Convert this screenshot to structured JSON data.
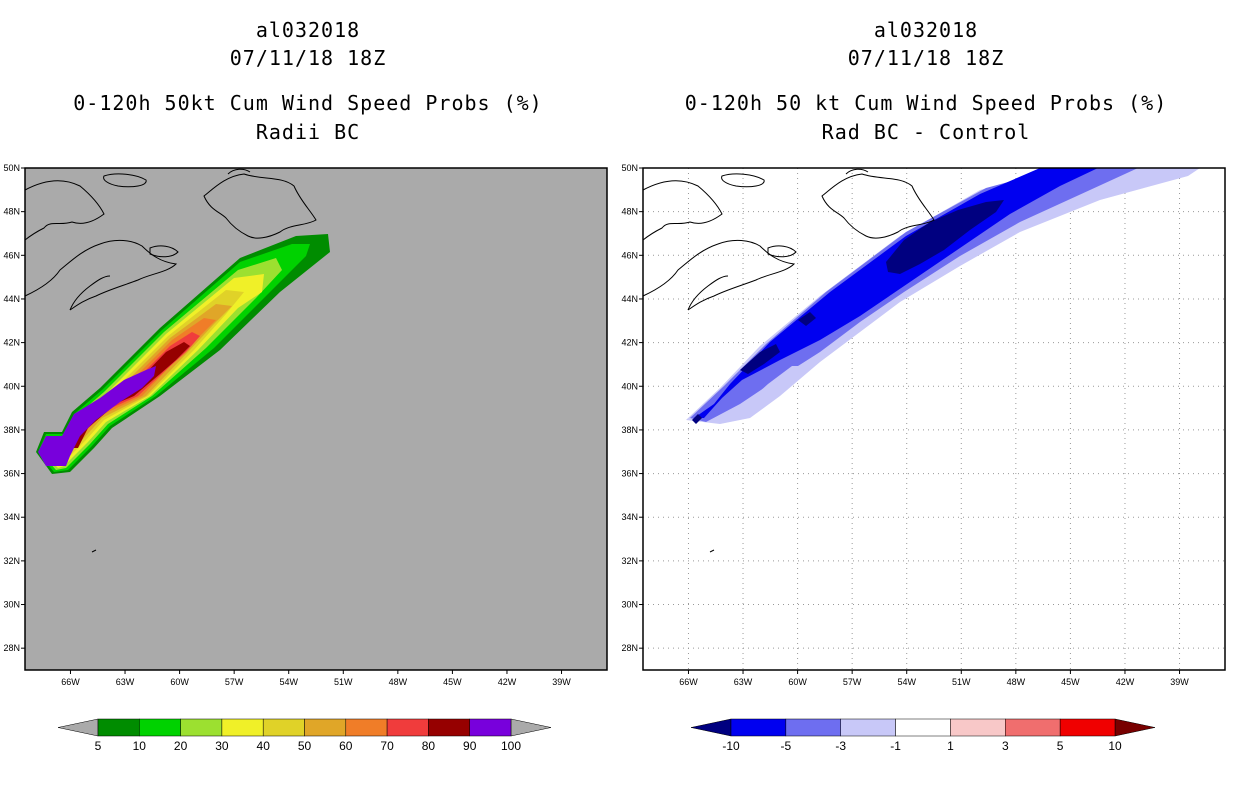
{
  "left_panel": {
    "storm_id": "al032018",
    "date": "07/11/18 18Z",
    "title1": "0-120h 50kt Cum Wind Speed Probs (%)",
    "title2": "Radii BC"
  },
  "right_panel": {
    "storm_id": "al032018",
    "date": "07/11/18 18Z",
    "title1": "0-120h 50 kt Cum Wind Speed Probs (%)",
    "title2": "Rad BC - Control"
  },
  "colors": {
    "land_bg": "#aaaaaa",
    "prob_levels": [
      "#008c00",
      "#00d200",
      "#9ce030",
      "#f0f028",
      "#e0d228",
      "#e0a628",
      "#f07d28",
      "#f03c3c",
      "#960000",
      "#7800dc"
    ],
    "diff_levels": [
      "#000080",
      "#0000f0",
      "#6e6ef0",
      "#c8c8f8",
      "#ffffff",
      "#f8c8c8",
      "#f06e6e",
      "#f00000",
      "#780000"
    ]
  },
  "chart_data": [
    {
      "type": "heatmap",
      "title": "0-120h 50kt Cum Wind Speed Probs (%)",
      "subtitle": "Radii BC",
      "x_tick_labels": [
        "66W",
        "63W",
        "60W",
        "57W",
        "54W",
        "51W",
        "48W",
        "45W",
        "42W",
        "39W"
      ],
      "y_tick_labels": [
        "50N",
        "48N",
        "46N",
        "44N",
        "42N",
        "40N",
        "38N",
        "36N",
        "34N",
        "32N",
        "30N",
        "28N"
      ],
      "xlim": [
        -68.5,
        -36.5
      ],
      "ylim": [
        27,
        50
      ],
      "grid": false,
      "legend_labels": [
        "5",
        "10",
        "20",
        "30",
        "40",
        "50",
        "60",
        "70",
        "80",
        "90",
        "100"
      ],
      "contour_levels": [
        5,
        10,
        20,
        30,
        40,
        50,
        60,
        70,
        80,
        90,
        100
      ]
    },
    {
      "type": "heatmap",
      "title": "0-120h 50 kt Cum Wind Speed Probs (%)",
      "subtitle": "Rad BC - Control",
      "x_tick_labels": [
        "66W",
        "63W",
        "60W",
        "57W",
        "54W",
        "51W",
        "48W",
        "45W",
        "42W",
        "39W"
      ],
      "y_tick_labels": [
        "50N",
        "48N",
        "46N",
        "44N",
        "42N",
        "40N",
        "38N",
        "36N",
        "34N",
        "32N",
        "30N",
        "28N"
      ],
      "xlim": [
        -68.5,
        -36.5
      ],
      "ylim": [
        27,
        50
      ],
      "grid": true,
      "legend_labels": [
        "-10",
        "-5",
        "-3",
        "-1",
        "1",
        "3",
        "5",
        "10"
      ],
      "contour_levels": [
        -10,
        -5,
        -3,
        -1,
        1,
        3,
        5,
        10
      ]
    }
  ]
}
